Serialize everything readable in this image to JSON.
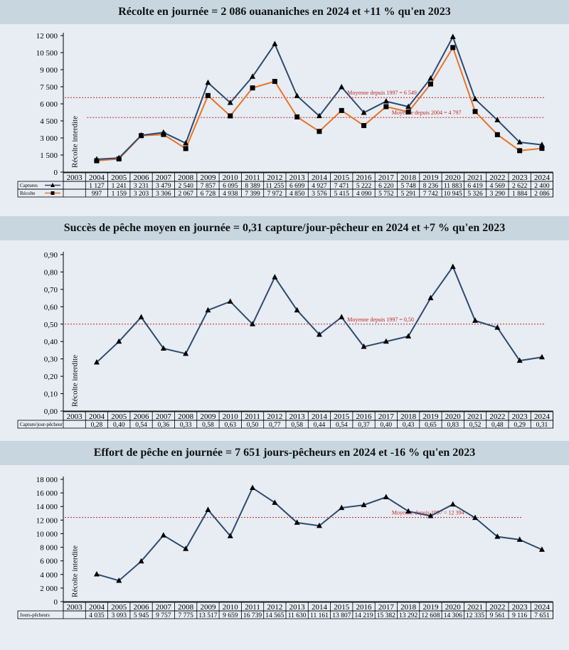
{
  "years": [
    "2003",
    "2004",
    "2005",
    "2006",
    "2007",
    "2008",
    "2009",
    "2010",
    "2011",
    "2012",
    "2013",
    "2014",
    "2015",
    "2016",
    "2017",
    "2018",
    "2019",
    "2020",
    "2021",
    "2022",
    "2023",
    "2024"
  ],
  "banned_label": "Récolte interdite",
  "colors": {
    "series_blue": "#2e4a72",
    "series_orange": "#e8732a",
    "mean_line": "#c0282d",
    "background": "#e7edf2",
    "banner": "#c8d6e0"
  },
  "chart_data": [
    {
      "type": "line",
      "title": "Récolte en journée = 2 086 ouananiches en 2024 et +11 % qu'en 2023",
      "ylim": [
        0,
        12000
      ],
      "yticks": [
        0,
        1500,
        3000,
        4500,
        6000,
        7500,
        9000,
        10500,
        12000
      ],
      "ytick_labels": [
        "0",
        "1 500",
        "3 000",
        "4 500",
        "6 000",
        "7 500",
        "9 000",
        "10 500",
        "12 000"
      ],
      "categories": [
        "2003",
        "2004",
        "2005",
        "2006",
        "2007",
        "2008",
        "2009",
        "2010",
        "2011",
        "2012",
        "2013",
        "2014",
        "2015",
        "2016",
        "2017",
        "2018",
        "2019",
        "2020",
        "2021",
        "2022",
        "2023",
        "2024"
      ],
      "series": [
        {
          "name": "Captures",
          "color": "#2e4a72",
          "marker": "triangle",
          "values": [
            null,
            1127,
            1241,
            3231,
            3479,
            2540,
            7857,
            6095,
            8389,
            11255,
            6699,
            4927,
            7471,
            5222,
            6220,
            5748,
            8236,
            11883,
            6419,
            4569,
            2622,
            2400
          ],
          "labels": [
            "",
            "1 127",
            "1 241",
            "3 231",
            "3 479",
            "2 540",
            "7 857",
            "6 095",
            "8 389",
            "11 255",
            "6 699",
            "4 927",
            "7 471",
            "5 222",
            "6 220",
            "5 748",
            "8 236",
            "11 883",
            "6 419",
            "4 569",
            "2 622",
            "2 400"
          ]
        },
        {
          "name": "Récolte",
          "color": "#e8732a",
          "marker": "square",
          "values": [
            null,
            997,
            1159,
            3203,
            3306,
            2067,
            6728,
            4938,
            7399,
            7972,
            4850,
            3576,
            5415,
            4090,
            5752,
            5291,
            7742,
            10945,
            5326,
            3290,
            1884,
            2086
          ],
          "labels": [
            "",
            "997",
            "1 159",
            "3 203",
            "3 306",
            "2 067",
            "6 728",
            "4 938",
            "7 399",
            "7 972",
            "4 850",
            "3 576",
            "5 415",
            "4 090",
            "5 752",
            "5 291",
            "7 742",
            "10 945",
            "5 326",
            "3 290",
            "1 884",
            "2 086"
          ]
        }
      ],
      "reference_lines": [
        {
          "label": "Moyenne depuis 1997 = 6 549",
          "value": 6549,
          "from": "2003",
          "to": "2024",
          "label_at": "2015"
        },
        {
          "label": "Moyenne depuis 2004 = 4 797",
          "value": 4797,
          "from": "2004",
          "to": "2024",
          "label_at": "2017"
        }
      ]
    },
    {
      "type": "line",
      "title": "Succès de pêche moyen en journée = 0,31 capture/jour-pêcheur en 2024 et +7 % qu'en 2023",
      "ylim": [
        0,
        0.9
      ],
      "yticks": [
        0,
        0.1,
        0.2,
        0.3,
        0.4,
        0.5,
        0.6,
        0.7,
        0.8,
        0.9
      ],
      "ytick_labels": [
        "0,00",
        "0,10",
        "0,20",
        "0,30",
        "0,40",
        "0,50",
        "0,60",
        "0,70",
        "0,80",
        "0,90"
      ],
      "categories": [
        "2003",
        "2004",
        "2005",
        "2006",
        "2007",
        "2008",
        "2009",
        "2010",
        "2011",
        "2012",
        "2013",
        "2014",
        "2015",
        "2016",
        "2017",
        "2018",
        "2019",
        "2020",
        "2021",
        "2022",
        "2023",
        "2024"
      ],
      "series": [
        {
          "name": "Capture/jour-pêcheur",
          "color": "#2e4a72",
          "marker": "triangle",
          "values": [
            null,
            0.28,
            0.4,
            0.54,
            0.36,
            0.33,
            0.58,
            0.63,
            0.5,
            0.77,
            0.58,
            0.44,
            0.54,
            0.37,
            0.4,
            0.43,
            0.65,
            0.83,
            0.52,
            0.48,
            0.29,
            0.31
          ],
          "labels": [
            "",
            "0,28",
            "0,40",
            "0,54",
            "0,36",
            "0,33",
            "0,58",
            "0,63",
            "0,50",
            "0,77",
            "0,58",
            "0,44",
            "0,54",
            "0,37",
            "0,40",
            "0,43",
            "0,65",
            "0,83",
            "0,52",
            "0,48",
            "0,29",
            "0,31"
          ]
        }
      ],
      "reference_lines": [
        {
          "label": "Moyenne depuis 1997 = 0,50",
          "value": 0.5,
          "from": "2003",
          "to": "2024",
          "label_at": "2015"
        }
      ]
    },
    {
      "type": "line",
      "title": "Effort de pêche en journée = 7 651 jours-pêcheurs en 2024 et -16 % qu'en 2023",
      "ylim": [
        0,
        18000
      ],
      "yticks": [
        0,
        2000,
        4000,
        6000,
        8000,
        10000,
        12000,
        14000,
        16000,
        18000
      ],
      "ytick_labels": [
        "0",
        "2 000",
        "4 000",
        "6 000",
        "8 000",
        "10 000",
        "12 000",
        "14 000",
        "16 000",
        "18 000"
      ],
      "categories": [
        "2003",
        "2004",
        "2005",
        "2006",
        "2007",
        "2008",
        "2009",
        "2010",
        "2011",
        "2012",
        "2013",
        "2014",
        "2015",
        "2016",
        "2017",
        "2018",
        "2019",
        "2020",
        "2021",
        "2022",
        "2023",
        "2024"
      ],
      "series": [
        {
          "name": "Jours-pêcheurs",
          "color": "#2e4a72",
          "marker": "triangle",
          "values": [
            null,
            4035,
            3093,
            5945,
            9757,
            7775,
            13517,
            9659,
            16739,
            14565,
            11630,
            11161,
            13807,
            14219,
            15382,
            13292,
            12608,
            14306,
            12335,
            9561,
            9116,
            7651
          ],
          "labels": [
            "",
            "4 035",
            "3 093",
            "5 945",
            "9 757",
            "7 775",
            "13 517",
            "9 659",
            "16 739",
            "14 565",
            "11 630",
            "11 161",
            "13 807",
            "14 219",
            "15 382",
            "13 292",
            "12 608",
            "14 306",
            "12 335",
            "9 561",
            "9 116",
            "7 651"
          ]
        }
      ],
      "reference_lines": [
        {
          "label": "Moyenne depuis 1997 = 12 394",
          "value": 12394,
          "from": "2003",
          "to": "2023",
          "label_at": "2017"
        }
      ]
    }
  ]
}
